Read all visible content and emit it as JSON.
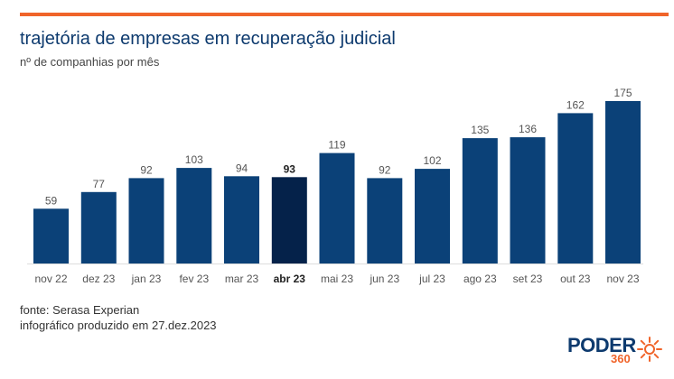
{
  "header": {
    "title": "trajetória de empresas em recuperação judicial",
    "subtitle": "nº de companhias por mês"
  },
  "footer": {
    "source": "fonte: Serasa Experian",
    "produced": "infográfico produzido em 27.dez.2023"
  },
  "brand": {
    "name": "PODER",
    "number": "360"
  },
  "colors": {
    "bar": "#0b4178",
    "bar_highlight": "#05224a",
    "accent": "#f0642a",
    "title": "#0d3a6e"
  },
  "chart_data": {
    "type": "bar",
    "categories": [
      "nov 22",
      "dez 23",
      "jan 23",
      "fev 23",
      "mar 23",
      "abr 23",
      "mai 23",
      "jun 23",
      "jul 23",
      "ago 23",
      "set 23",
      "out 23",
      "nov 23"
    ],
    "values": [
      59,
      77,
      92,
      103,
      94,
      93,
      119,
      92,
      102,
      135,
      136,
      162,
      175
    ],
    "highlight": "abr 23",
    "ylim": [
      0,
      175
    ],
    "grid": false,
    "legend": "none"
  }
}
